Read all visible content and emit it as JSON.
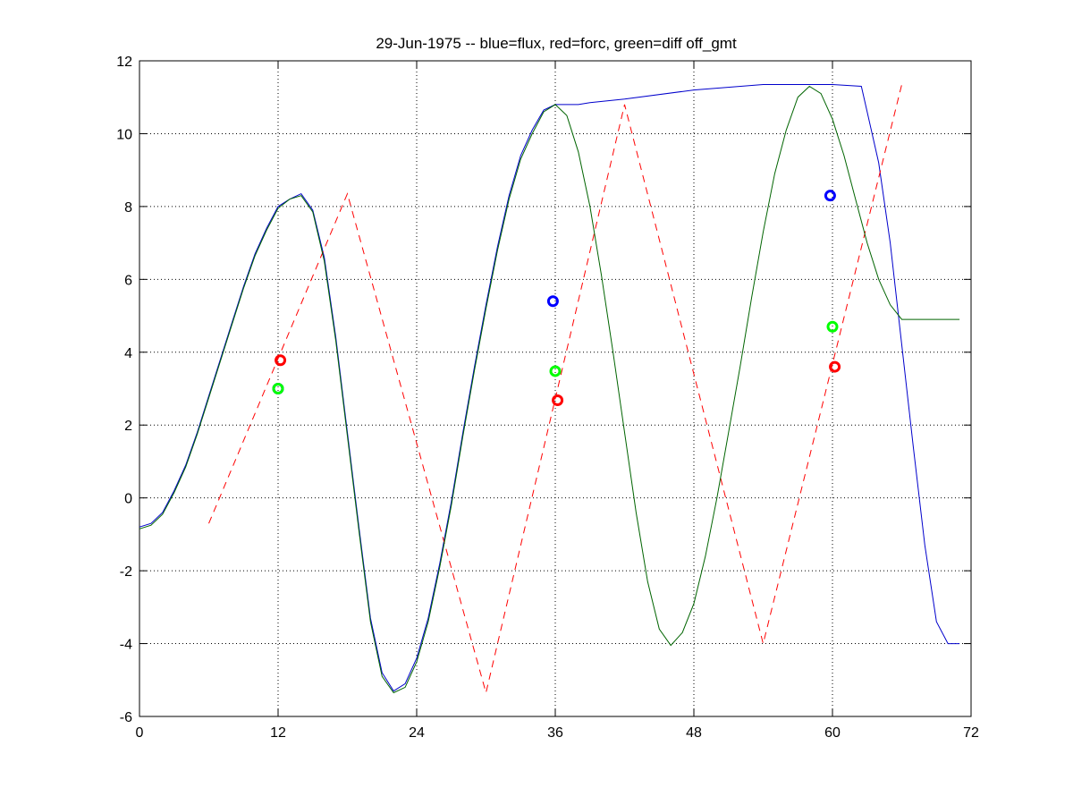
{
  "chart_data": {
    "type": "line",
    "title": "29-Jun-1975 -- blue=flux, red=forc, green=diff off_gmt",
    "xlabel": "",
    "ylabel": "",
    "xlim": [
      0,
      72
    ],
    "ylim": [
      -6,
      12
    ],
    "xticks": [
      0,
      12,
      24,
      36,
      48,
      60,
      72
    ],
    "yticks": [
      -6,
      -4,
      -2,
      0,
      2,
      4,
      6,
      8,
      10,
      12
    ],
    "grid": true,
    "colors": {
      "flux": "#0000cc",
      "forc": "#ff0000",
      "diff": "#006400",
      "diff_marker": "#00ff00",
      "flux_marker": "#0000ff"
    },
    "series": [
      {
        "style": "solid",
        "color": "#0000cc",
        "x": [
          0,
          1,
          2,
          3,
          4,
          5,
          6,
          7,
          8,
          9,
          10,
          11,
          12,
          13,
          14,
          15,
          16,
          17,
          18,
          19,
          20,
          21,
          22,
          23,
          24,
          25,
          26,
          27,
          28,
          29,
          30,
          31,
          32,
          33,
          34,
          35,
          36,
          37,
          38,
          39,
          42,
          48,
          54,
          60,
          62.5,
          63,
          64,
          65,
          66,
          67,
          68,
          69,
          70,
          71
        ],
        "y": [
          -0.8,
          -0.7,
          -0.4,
          0.2,
          0.9,
          1.8,
          2.8,
          3.8,
          4.8,
          5.8,
          6.7,
          7.4,
          8.0,
          8.2,
          8.35,
          7.9,
          6.6,
          4.4,
          1.8,
          -0.8,
          -3.3,
          -4.8,
          -5.3,
          -5.1,
          -4.4,
          -3.3,
          -1.8,
          -0.1,
          1.8,
          3.6,
          5.3,
          6.9,
          8.3,
          9.4,
          10.1,
          10.65,
          10.8,
          10.8,
          10.8,
          10.85,
          10.95,
          11.2,
          11.35,
          11.35,
          11.3,
          10.6,
          9.2,
          7.0,
          4.2,
          1.4,
          -1.3,
          -3.4,
          -4.0,
          -4.0
        ]
      },
      {
        "style": "dashed",
        "color": "#ff0000",
        "x": [
          6,
          18,
          30,
          42,
          54,
          66
        ],
        "y": [
          -0.7,
          8.35,
          -5.35,
          10.8,
          -4.0,
          11.35
        ]
      },
      {
        "style": "solid",
        "color": "#006400",
        "x": [
          0,
          1,
          2,
          3,
          4,
          5,
          6,
          7,
          8,
          9,
          10,
          11,
          12,
          13,
          14,
          15,
          16,
          17,
          18,
          19,
          20,
          21,
          22,
          23,
          24,
          25,
          26,
          27,
          28,
          29,
          30,
          31,
          32,
          33,
          34,
          35,
          36,
          37,
          38,
          39,
          40,
          41,
          42,
          43,
          44,
          45,
          46,
          47,
          48,
          49,
          50,
          51,
          52,
          53,
          54,
          55,
          56,
          57,
          58,
          59,
          60,
          61,
          62,
          63,
          64,
          65,
          66,
          67,
          68,
          69,
          70,
          71
        ],
        "y": [
          -0.85,
          -0.75,
          -0.45,
          0.15,
          0.85,
          1.75,
          2.75,
          3.75,
          4.75,
          5.75,
          6.65,
          7.35,
          7.95,
          8.2,
          8.3,
          7.85,
          6.5,
          4.3,
          1.7,
          -0.9,
          -3.4,
          -4.9,
          -5.35,
          -5.2,
          -4.5,
          -3.4,
          -1.9,
          -0.2,
          1.7,
          3.5,
          5.2,
          6.8,
          8.2,
          9.3,
          10.0,
          10.6,
          10.8,
          10.5,
          9.5,
          8.0,
          6.1,
          4.0,
          1.8,
          -0.4,
          -2.3,
          -3.6,
          -4.05,
          -3.7,
          -2.9,
          -1.6,
          0.0,
          1.8,
          3.6,
          5.5,
          7.3,
          8.9,
          10.1,
          11.0,
          11.3,
          11.1,
          10.4,
          9.4,
          8.2,
          7.0,
          6.0,
          5.3,
          4.9,
          4.9,
          4.9,
          4.9,
          4.9,
          4.9
        ]
      }
    ],
    "markers": [
      {
        "color": "#0000ff",
        "points": [
          [
            12,
            3.0
          ],
          [
            35.8,
            5.4
          ],
          [
            59.8,
            8.3
          ]
        ]
      },
      {
        "color": "#ff0000",
        "points": [
          [
            12.2,
            3.78
          ],
          [
            36.2,
            2.68
          ],
          [
            60.2,
            3.6
          ]
        ]
      },
      {
        "color": "#00ff00",
        "points": [
          [
            12,
            3.0
          ],
          [
            36,
            3.48
          ],
          [
            60,
            4.7
          ]
        ]
      }
    ]
  }
}
